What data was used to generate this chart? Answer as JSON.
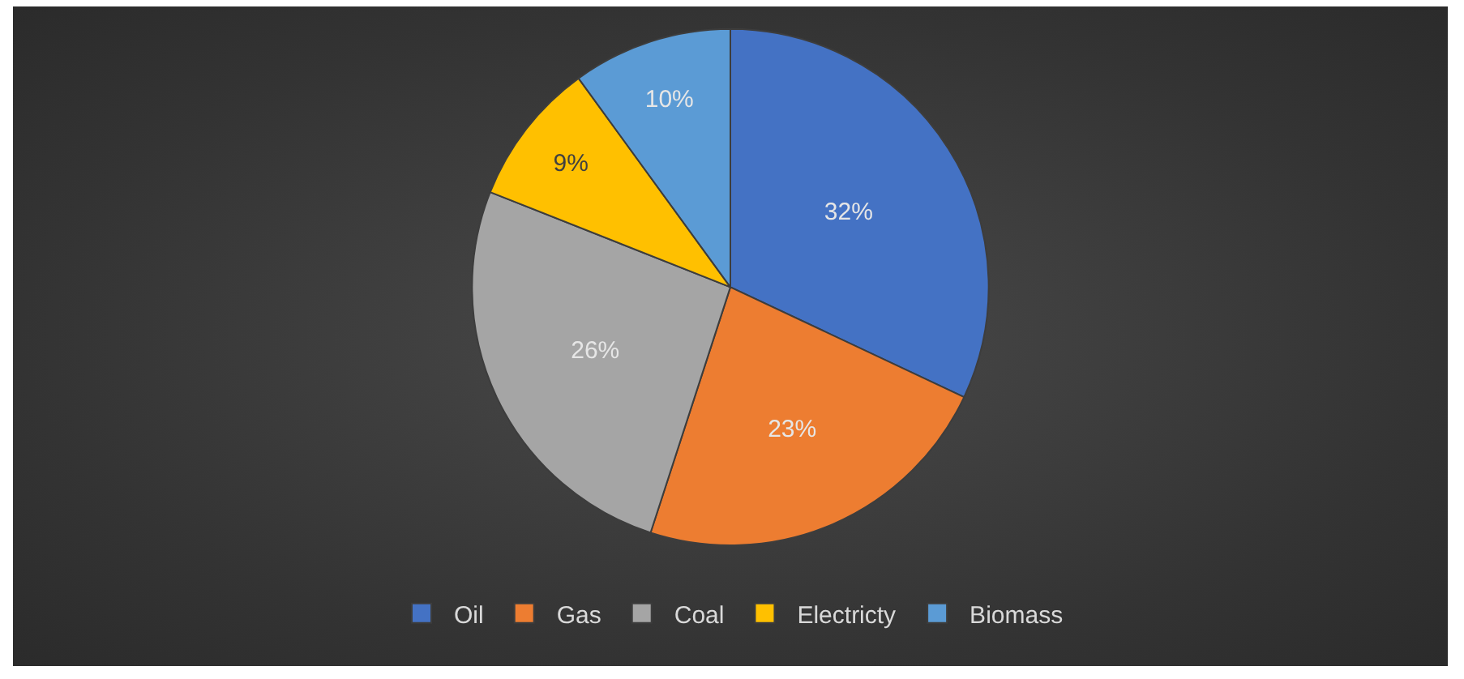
{
  "chart_data": {
    "type": "pie",
    "categories": [
      "Oil",
      "Gas",
      "Coal",
      "Electricty",
      "Biomass"
    ],
    "values": [
      32,
      23,
      26,
      9,
      10
    ],
    "colors": [
      "#4472c4",
      "#ed7d31",
      "#a5a5a5",
      "#ffc000",
      "#5b9bd5"
    ],
    "value_labels": [
      "32%",
      "23%",
      "26%",
      "9%",
      "10%"
    ],
    "legend": "bottom"
  }
}
